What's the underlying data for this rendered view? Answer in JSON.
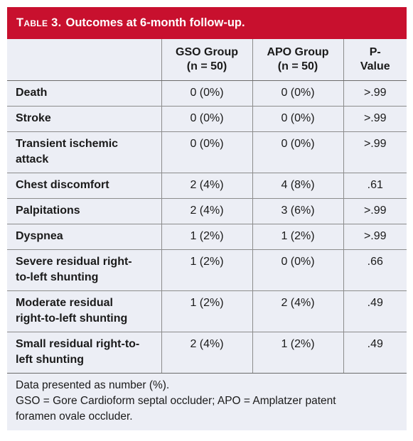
{
  "table": {
    "label": "Table 3.",
    "title": "Outcomes at 6-month follow-up.",
    "headers": [
      {
        "line1": "",
        "line2": ""
      },
      {
        "line1": "GSO Group",
        "line2": "(n = 50)"
      },
      {
        "line1": "APO Group",
        "line2": "(n = 50)"
      },
      {
        "line1": "P-",
        "line2": "Value"
      }
    ],
    "rows": [
      {
        "outcome": "Death",
        "gso": "0 (0%)",
        "apo": "0 (0%)",
        "p": ">.99"
      },
      {
        "outcome": "Stroke",
        "gso": "0 (0%)",
        "apo": "0 (0%)",
        "p": ">.99"
      },
      {
        "outcome": "Transient ischemic attack",
        "gso": "0 (0%)",
        "apo": "0 (0%)",
        "p": ">.99"
      },
      {
        "outcome": "Chest discomfort",
        "gso": "2 (4%)",
        "apo": "4 (8%)",
        "p": ".61"
      },
      {
        "outcome": "Palpitations",
        "gso": "2 (4%)",
        "apo": "3 (6%)",
        "p": ">.99"
      },
      {
        "outcome": "Dyspnea",
        "gso": "1 (2%)",
        "apo": "1 (2%)",
        "p": ">.99"
      },
      {
        "outcome": "Severe residual right-to-left shunting",
        "gso": "1 (2%)",
        "apo": "0 (0%)",
        "p": ".66"
      },
      {
        "outcome": "Moderate residual right-to-left shunting",
        "gso": "1 (2%)",
        "apo": "2 (4%)",
        "p": ".49"
      },
      {
        "outcome": "Small residual right-to-left shunting",
        "gso": "2 (4%)",
        "apo": "1 (2%)",
        "p": ".49"
      }
    ],
    "footnotes": [
      "Data presented as number (%).",
      "GSO = Gore Cardioform septal occluder; APO = Amplatzer patent",
      "foramen ovale occluder."
    ]
  },
  "colors": {
    "title_bar": "#c8102e",
    "table_background": "#eceef5"
  }
}
